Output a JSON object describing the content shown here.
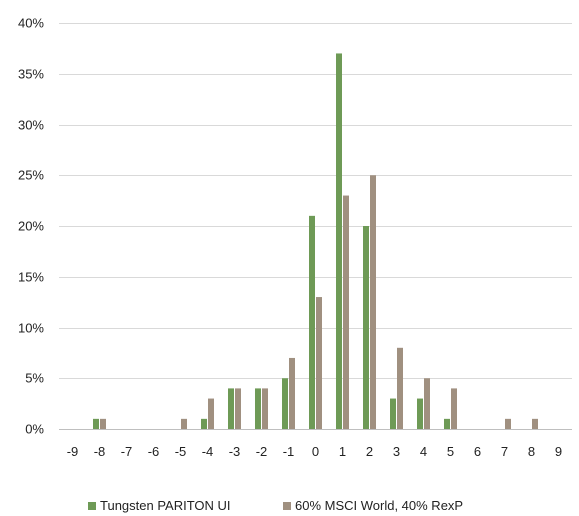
{
  "chart_data": {
    "type": "bar",
    "title": "",
    "xlabel": "",
    "ylabel": "",
    "categories": [
      "-9",
      "-8",
      "-7",
      "-6",
      "-5",
      "-4",
      "-3",
      "-2",
      "-1",
      "0",
      "1",
      "2",
      "3",
      "4",
      "5",
      "6",
      "7",
      "8",
      "9"
    ],
    "series": [
      {
        "name": "Tungsten PARITON UI",
        "color": "#6e9a56",
        "values": [
          0,
          1,
          0,
          0,
          0,
          1,
          4,
          4,
          5,
          21,
          37,
          20,
          3,
          3,
          1,
          0,
          0,
          0,
          0
        ]
      },
      {
        "name": "60% MSCI World, 40% RexP",
        "color": "#a09080",
        "values": [
          0,
          1,
          0,
          0,
          1,
          3,
          4,
          4,
          7,
          13,
          23,
          25,
          8,
          5,
          4,
          0,
          1,
          1,
          0
        ]
      }
    ],
    "ylim": [
      0,
      40
    ],
    "yticks": [
      0,
      5,
      10,
      15,
      20,
      25,
      30,
      35,
      40
    ],
    "ytick_labels": [
      "0%",
      "5%",
      "10%",
      "15%",
      "20%",
      "25%",
      "30%",
      "35%",
      "40%"
    ],
    "grid": true,
    "legend_position": "bottom"
  }
}
